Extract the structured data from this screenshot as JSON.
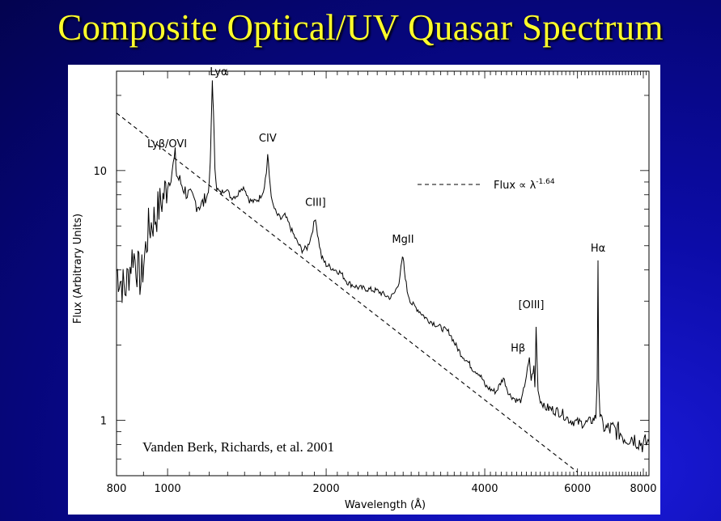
{
  "slide": {
    "title": "Composite Optical/UV Quasar Spectrum"
  },
  "colors": {
    "background": "#0c0ca8",
    "title": "#ffff2a",
    "panel": "#ffffff",
    "ink": "#000000"
  },
  "chart_data": {
    "type": "line",
    "title": "",
    "xlabel": "Wavelength (Å)",
    "ylabel": "Flux (Arbitrary Units)",
    "x_scale": "log",
    "y_scale": "log",
    "xlim": [
      800,
      8200
    ],
    "ylim": [
      0.6,
      25
    ],
    "x_tick_labels": [
      {
        "value": 800,
        "label": "800"
      },
      {
        "value": 1000,
        "label": "1000"
      },
      {
        "value": 2000,
        "label": "2000"
      },
      {
        "value": 4000,
        "label": "4000"
      },
      {
        "value": 6000,
        "label": "6000"
      },
      {
        "value": 8000,
        "label": "8000"
      }
    ],
    "y_tick_labels": [
      {
        "value": 1,
        "label": "1"
      },
      {
        "value": 10,
        "label": "10"
      }
    ],
    "grid": false,
    "series": [
      {
        "name": "",
        "style": "solid",
        "x": [
          800,
          830,
          860,
          890,
          920,
          950,
          980,
          1000,
          1010,
          1025,
          1034,
          1040,
          1060,
          1080,
          1100,
          1120,
          1140,
          1160,
          1180,
          1195,
          1205,
          1210,
          1216,
          1222,
          1230,
          1240,
          1260,
          1290,
          1320,
          1360,
          1380,
          1400,
          1430,
          1460,
          1490,
          1520,
          1540,
          1549,
          1560,
          1580,
          1610,
          1640,
          1670,
          1700,
          1730,
          1760,
          1800,
          1840,
          1870,
          1895,
          1909,
          1925,
          1960,
          2000,
          2060,
          2130,
          2200,
          2300,
          2400,
          2500,
          2600,
          2650,
          2700,
          2750,
          2785,
          2798,
          2815,
          2850,
          2900,
          3000,
          3100,
          3200,
          3300,
          3426,
          3500,
          3600,
          3727,
          3800,
          3889,
          3970,
          4000,
          4102,
          4200,
          4340,
          4450,
          4600,
          4700,
          4861,
          4900,
          4959,
          4980,
          5007,
          5050,
          5100,
          5200,
          5400,
          5600,
          5800,
          6000,
          6200,
          6400,
          6500,
          6540,
          6563,
          6580,
          6620,
          6700,
          6800,
          7000,
          7200,
          7400,
          7600,
          7800,
          8000,
          8200
        ],
        "y": [
          4.0,
          3.3,
          4.7,
          3.6,
          5.8,
          6.6,
          7.8,
          8.8,
          9.3,
          10.5,
          11.5,
          9.6,
          8.9,
          8.3,
          7.9,
          7.6,
          7.3,
          7.3,
          7.6,
          8.2,
          10.5,
          15.0,
          23.0,
          17.0,
          10.3,
          8.5,
          8.1,
          8.5,
          7.8,
          8.0,
          8.6,
          8.5,
          7.6,
          7.5,
          7.7,
          8.3,
          9.8,
          11.6,
          9.5,
          7.4,
          6.7,
          6.4,
          6.6,
          6.1,
          5.6,
          5.2,
          4.8,
          4.9,
          5.4,
          6.1,
          6.5,
          5.6,
          4.5,
          4.2,
          4.05,
          3.9,
          3.55,
          3.4,
          3.35,
          3.3,
          3.15,
          3.1,
          3.25,
          3.6,
          4.3,
          4.5,
          4.0,
          3.3,
          2.95,
          2.75,
          2.55,
          2.45,
          2.35,
          2.25,
          2.05,
          1.85,
          1.7,
          1.6,
          1.55,
          1.45,
          1.38,
          1.33,
          1.3,
          1.48,
          1.27,
          1.2,
          1.2,
          1.75,
          1.45,
          1.63,
          1.35,
          2.35,
          1.32,
          1.2,
          1.13,
          1.1,
          1.07,
          1.0,
          0.98,
          0.97,
          1.0,
          1.03,
          1.5,
          4.2,
          1.5,
          1.05,
          0.97,
          0.92,
          0.92,
          0.9,
          0.85,
          0.86,
          0.83,
          0.8,
          0.82
        ]
      },
      {
        "name": "Flux ∝ λ",
        "style": "dashed",
        "x": [
          800,
          6000
        ],
        "y": [
          17.0,
          0.62
        ]
      }
    ],
    "legend": {
      "label": "Flux ∝ λ",
      "superscript": "-1.64",
      "placement": "top-right"
    },
    "annotations": [
      {
        "label": "Lyα",
        "x": 1216,
        "y": 23.0
      },
      {
        "label": "Lyβ/OVI",
        "x": 1034,
        "y": 11.5
      },
      {
        "label": "CIV",
        "x": 1549,
        "y": 11.6
      },
      {
        "label": "CIII]",
        "x": 1909,
        "y": 6.5
      },
      {
        "label": "MgII",
        "x": 2798,
        "y": 4.5
      },
      {
        "label": "[OIII]",
        "x": 5007,
        "y": 2.35
      },
      {
        "label": "Hβ",
        "x": 4861,
        "y": 1.75
      },
      {
        "label": "Hα",
        "x": 6563,
        "y": 4.2
      }
    ],
    "credit": "Vanden Berk, Richards, et al. 2001"
  }
}
